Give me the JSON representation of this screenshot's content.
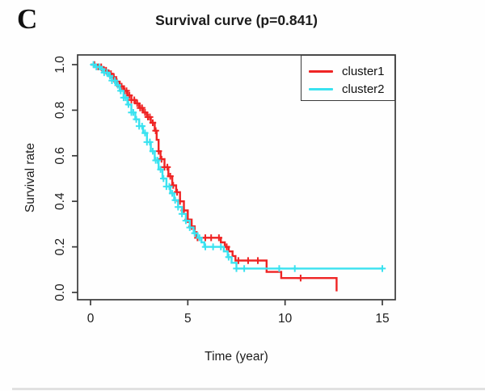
{
  "figure": {
    "panel_label": "C"
  },
  "chart_data": {
    "type": "line",
    "subtype": "kaplan-meier-survival-step",
    "title": "Survival curve (p=0.841)",
    "xlabel": "Time (year)",
    "ylabel": "Survival rate",
    "xlim": [
      0,
      15
    ],
    "ylim": [
      0.0,
      1.0
    ],
    "x_ticks": [
      0,
      5,
      10,
      15
    ],
    "x_tick_labels": [
      "0",
      "5",
      "10",
      "15"
    ],
    "y_ticks": [
      0.0,
      0.2,
      0.4,
      0.6,
      0.8,
      1.0
    ],
    "y_tick_labels": [
      "0.0",
      "0.2",
      "0.4",
      "0.6",
      "0.8",
      "1.0"
    ],
    "grid": false,
    "legend_position": "topright",
    "series": [
      {
        "name": "cluster1",
        "color": "#ef2424",
        "points": [
          [
            0,
            1.0
          ],
          [
            0.3,
            0.99
          ],
          [
            0.6,
            0.975
          ],
          [
            0.9,
            0.96
          ],
          [
            1.1,
            0.945
          ],
          [
            1.3,
            0.925
          ],
          [
            1.5,
            0.905
          ],
          [
            1.7,
            0.885
          ],
          [
            1.9,
            0.865
          ],
          [
            2.1,
            0.845
          ],
          [
            2.3,
            0.83
          ],
          [
            2.5,
            0.81
          ],
          [
            2.7,
            0.79
          ],
          [
            2.9,
            0.77
          ],
          [
            3.1,
            0.745
          ],
          [
            3.3,
            0.71
          ],
          [
            3.4,
            0.67
          ],
          [
            3.5,
            0.62
          ],
          [
            3.6,
            0.585
          ],
          [
            3.8,
            0.55
          ],
          [
            4.0,
            0.51
          ],
          [
            4.2,
            0.47
          ],
          [
            4.4,
            0.44
          ],
          [
            4.6,
            0.4
          ],
          [
            4.8,
            0.36
          ],
          [
            5.0,
            0.32
          ],
          [
            5.2,
            0.29
          ],
          [
            5.35,
            0.265
          ],
          [
            5.45,
            0.24
          ],
          [
            6.7,
            0.22
          ],
          [
            6.9,
            0.2
          ],
          [
            7.1,
            0.18
          ],
          [
            7.3,
            0.16
          ],
          [
            7.45,
            0.14
          ],
          [
            9.05,
            0.09
          ],
          [
            9.8,
            0.063
          ],
          [
            12.65,
            0.005
          ]
        ],
        "censor_times": [
          0.2,
          0.4,
          0.55,
          0.7,
          0.8,
          0.95,
          1.05,
          1.2,
          1.35,
          1.5,
          1.6,
          1.75,
          1.85,
          2.0,
          2.1,
          2.25,
          2.4,
          2.55,
          2.65,
          2.8,
          2.95,
          3.05,
          3.2,
          3.35,
          3.5,
          3.65,
          3.8,
          3.95,
          4.1,
          4.25,
          4.45,
          4.6,
          4.8,
          5.0,
          5.2,
          5.5,
          5.9,
          6.2,
          6.6,
          7.0,
          7.6,
          8.1,
          8.6,
          10.8
        ]
      },
      {
        "name": "cluster2",
        "color": "#3ae2f0",
        "points": [
          [
            0,
            1.0
          ],
          [
            0.25,
            0.99
          ],
          [
            0.5,
            0.98
          ],
          [
            0.7,
            0.965
          ],
          [
            0.9,
            0.95
          ],
          [
            1.1,
            0.93
          ],
          [
            1.3,
            0.91
          ],
          [
            1.5,
            0.885
          ],
          [
            1.7,
            0.855
          ],
          [
            1.9,
            0.825
          ],
          [
            2.1,
            0.79
          ],
          [
            2.3,
            0.76
          ],
          [
            2.5,
            0.73
          ],
          [
            2.7,
            0.7
          ],
          [
            2.9,
            0.66
          ],
          [
            3.1,
            0.62
          ],
          [
            3.3,
            0.58
          ],
          [
            3.5,
            0.54
          ],
          [
            3.7,
            0.5
          ],
          [
            3.9,
            0.465
          ],
          [
            4.1,
            0.435
          ],
          [
            4.3,
            0.405
          ],
          [
            4.5,
            0.375
          ],
          [
            4.7,
            0.345
          ],
          [
            4.9,
            0.315
          ],
          [
            5.1,
            0.285
          ],
          [
            5.3,
            0.26
          ],
          [
            5.5,
            0.24
          ],
          [
            5.7,
            0.22
          ],
          [
            5.85,
            0.2
          ],
          [
            6.85,
            0.18
          ],
          [
            7.05,
            0.155
          ],
          [
            7.25,
            0.13
          ],
          [
            7.5,
            0.105
          ],
          [
            15,
            0.105
          ]
        ],
        "censor_times": [
          0.15,
          0.3,
          0.45,
          0.6,
          0.7,
          0.85,
          1.0,
          1.1,
          1.25,
          1.4,
          1.55,
          1.7,
          1.8,
          1.95,
          2.1,
          2.2,
          2.35,
          2.5,
          2.65,
          2.8,
          2.9,
          3.05,
          3.2,
          3.35,
          3.45,
          3.6,
          3.75,
          3.9,
          4.05,
          4.2,
          4.35,
          4.5,
          4.7,
          4.9,
          5.1,
          5.35,
          5.6,
          5.9,
          6.3,
          6.7,
          7.1,
          7.5,
          7.9,
          9.7,
          10.5,
          15.0
        ]
      }
    ]
  }
}
